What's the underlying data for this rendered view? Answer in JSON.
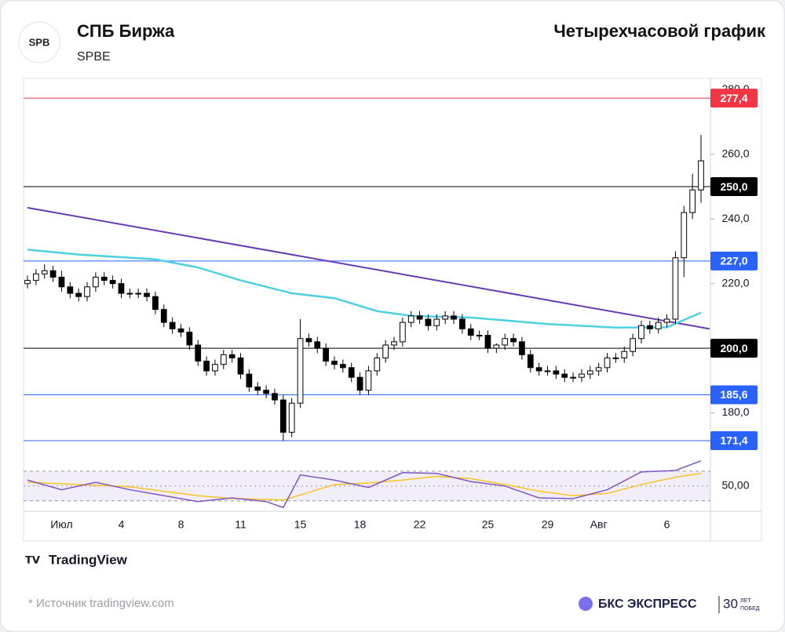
{
  "header": {
    "logo": "SPB",
    "title": "СПБ Биржа",
    "subtitle": "SPBE",
    "right_title": "Четырехчасовой график"
  },
  "chart_data": {
    "type": "candlestick",
    "categories": [
      null,
      null,
      null,
      null,
      "Июл",
      null,
      null,
      null,
      null,
      null,
      null,
      "4",
      null,
      null,
      null,
      null,
      null,
      null,
      "8",
      null,
      null,
      null,
      null,
      null,
      null,
      "11",
      null,
      null,
      null,
      null,
      null,
      null,
      "15",
      null,
      null,
      null,
      null,
      null,
      null,
      "18",
      null,
      null,
      null,
      null,
      null,
      null,
      "22",
      null,
      null,
      null,
      null,
      null,
      null,
      null,
      "25",
      null,
      null,
      null,
      null,
      null,
      null,
      "29",
      null,
      null,
      null,
      null,
      null,
      "Авг",
      null,
      null,
      null,
      null,
      null,
      null,
      null,
      "6",
      null,
      null,
      null,
      null
    ],
    "open": [
      220,
      221,
      223,
      224,
      222,
      219,
      217,
      216,
      219,
      222,
      221,
      220,
      217,
      217,
      217,
      216,
      212,
      208,
      206,
      205,
      201,
      196,
      193,
      195,
      198,
      197,
      192,
      188,
      187,
      186,
      184,
      174,
      183,
      203,
      202,
      200,
      196,
      195,
      194,
      191,
      187,
      193,
      197,
      201,
      202,
      208,
      210,
      209,
      207,
      209,
      210,
      209,
      206,
      204,
      204,
      200,
      201,
      203,
      202,
      198,
      194,
      193,
      193,
      192,
      191,
      191,
      192,
      193,
      194,
      197,
      197,
      199,
      203,
      207,
      206,
      208,
      209,
      228,
      242,
      249
    ],
    "high": [
      222.5,
      224.5,
      226,
      225.5,
      224,
      220.5,
      218.5,
      220.5,
      223.5,
      223.5,
      222.5,
      221.5,
      218.5,
      218.5,
      218.5,
      217.5,
      213.5,
      209.5,
      207.5,
      206.5,
      202.5,
      197.5,
      196.5,
      199.5,
      199.5,
      198.5,
      193.5,
      189.5,
      188.5,
      187.5,
      185.5,
      184.5,
      209,
      204.5,
      203.5,
      201.5,
      197.5,
      196.5,
      195.5,
      192.5,
      194.5,
      198.5,
      202.5,
      203.5,
      209.5,
      211.5,
      211.5,
      210.5,
      210.5,
      211.5,
      211.5,
      210.5,
      207.5,
      205.5,
      205.5,
      201.5,
      204.5,
      204.5,
      203.5,
      199.5,
      195.5,
      194.5,
      194.5,
      193.5,
      192.5,
      193.5,
      194.5,
      195.5,
      198.5,
      198.5,
      200.5,
      204.5,
      208.5,
      208.5,
      209.5,
      210.5,
      230,
      244,
      254,
      266
    ],
    "low": [
      218.5,
      219.5,
      221.5,
      220.5,
      217.5,
      215.5,
      214.5,
      214.5,
      217.5,
      219.5,
      218.5,
      215.5,
      215.5,
      215.5,
      214.5,
      210.5,
      206.5,
      204.5,
      203.5,
      199.5,
      194.5,
      191.5,
      191.5,
      193.5,
      195.5,
      190.5,
      186.5,
      185.5,
      184.5,
      182.5,
      171.4,
      172.5,
      181.5,
      200.5,
      198.5,
      194.5,
      193.5,
      192.5,
      189.5,
      185.6,
      185.5,
      191.5,
      195.5,
      199.5,
      200.5,
      206.5,
      207.5,
      205.5,
      205.5,
      207.5,
      207.5,
      204.5,
      202.5,
      202.5,
      198.5,
      198.5,
      199.5,
      200.5,
      196.5,
      192.5,
      191.5,
      191.5,
      190.5,
      189.5,
      189.5,
      189.5,
      190.5,
      191.5,
      192.5,
      195.5,
      195.5,
      197.5,
      201.5,
      204.5,
      204.5,
      206.5,
      207.5,
      222,
      240,
      245
    ],
    "close": [
      221,
      223,
      224,
      222,
      219,
      217,
      216,
      219,
      222,
      221,
      220,
      217,
      217,
      217,
      216,
      212,
      208,
      206,
      205,
      201,
      196,
      193,
      195,
      198,
      197,
      192,
      188,
      187,
      186,
      184,
      174,
      183,
      203,
      202,
      200,
      196,
      195,
      194,
      191,
      187,
      193,
      197,
      201,
      202,
      208,
      210,
      209,
      207,
      209,
      210,
      209,
      206,
      204,
      204,
      200,
      201,
      203,
      202,
      198,
      194,
      193,
      193,
      192,
      191,
      191,
      192,
      193,
      194,
      197,
      197,
      199,
      203,
      207,
      206,
      208,
      209,
      228,
      242,
      249,
      258
    ],
    "ylim": [
      164.6,
      283.5
    ],
    "yticks": [
      {
        "value": 180,
        "label": "180,0"
      },
      {
        "value": 220,
        "label": "220,0"
      },
      {
        "value": 240,
        "label": "240,0"
      },
      {
        "value": 260,
        "label": "260,0"
      },
      {
        "value": 280,
        "label": "280,0"
      }
    ],
    "levels": [
      {
        "value": 277.4,
        "label": "277,4",
        "color": "#f23645"
      },
      {
        "value": 250,
        "label": "250,0",
        "color": "#000000"
      },
      {
        "value": 227,
        "label": "227,0",
        "color": "#2962ff"
      },
      {
        "value": 200,
        "label": "200,0",
        "color": "#000000"
      },
      {
        "value": 185.6,
        "label": "185,6",
        "color": "#2962ff"
      },
      {
        "value": 171.4,
        "label": "171,4",
        "color": "#2962ff"
      }
    ],
    "trendline": {
      "color": "#673ab7",
      "x": [
        0,
        80
      ],
      "values": [
        243.5,
        206
      ]
    },
    "moving_average": {
      "color": "#4dd0e1",
      "x": [
        0,
        6,
        15,
        20,
        25,
        31,
        36,
        41,
        45,
        52,
        61,
        69,
        75,
        79
      ],
      "values": [
        230.5,
        229,
        227.5,
        225,
        221,
        217,
        215.5,
        211.5,
        210,
        209.5,
        207.5,
        206.4,
        206.5,
        211
      ]
    },
    "rsi": {
      "ylim": [
        16,
        90
      ],
      "band": [
        30,
        70
      ],
      "yticks": [
        {
          "value": 50,
          "label": "50,00"
        }
      ],
      "color": "#7e57c2",
      "signal_color": "#f7c325",
      "x": [
        0,
        4,
        8,
        12,
        16,
        20,
        24,
        28,
        30,
        32,
        36,
        40,
        44,
        48,
        52,
        56,
        60,
        64,
        68,
        72,
        76,
        79
      ],
      "values": [
        58,
        45,
        55,
        45,
        37,
        29,
        34,
        29,
        21,
        65,
        58,
        48,
        68,
        67,
        56,
        50,
        34,
        33,
        45,
        69,
        71,
        84
      ],
      "signal": [
        55,
        53,
        51,
        49,
        43,
        37,
        33,
        32,
        31,
        38,
        52,
        54,
        58,
        63,
        60,
        52,
        43,
        37,
        40,
        52,
        62,
        67
      ]
    }
  },
  "footer": {
    "brand": "TradingView",
    "source": "* Источник tradingview.com",
    "company": "БКС ЭКСПРЕСС",
    "badge_number": "30",
    "badge_text_1": "ЛЕТ",
    "badge_text_2": "ПОБЕД"
  }
}
